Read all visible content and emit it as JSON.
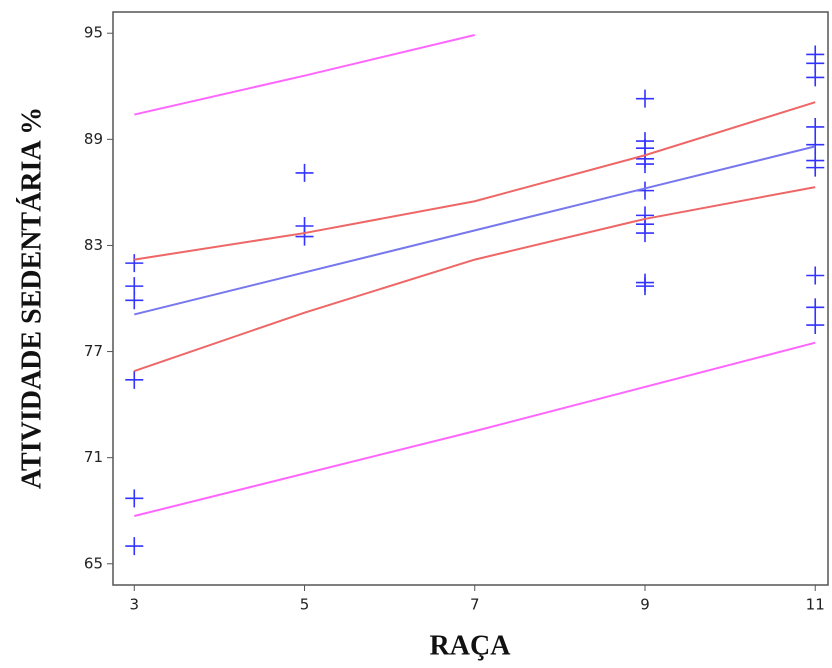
{
  "chart_data": {
    "type": "scatter",
    "xlabel": "RAÇA",
    "ylabel": "ATIVIDADE SEDENTÁRIA %",
    "xlim": [
      2.75,
      11.15
    ],
    "ylim": [
      63.8,
      96.2
    ],
    "xticks": [
      3,
      5,
      7,
      9,
      11
    ],
    "yticks": [
      65,
      71,
      77,
      83,
      89,
      95
    ],
    "series": [
      {
        "style": "markers",
        "color": "#3333ff",
        "x": [
          3,
          3,
          3,
          3,
          3,
          3,
          5,
          5,
          5,
          9,
          9,
          9,
          9,
          9,
          9,
          9,
          9,
          9,
          9,
          9,
          11,
          11,
          11,
          11,
          11,
          11,
          11,
          11,
          11,
          11
        ],
        "values": [
          82.0,
          80.7,
          79.9,
          75.4,
          68.7,
          66.0,
          87.1,
          84.1,
          83.5,
          91.3,
          88.9,
          88.5,
          87.9,
          87.6,
          86.1,
          84.7,
          84.2,
          83.7,
          80.9,
          80.7,
          93.8,
          93.3,
          92.5,
          89.7,
          88.7,
          87.8,
          87.4,
          81.3,
          79.5,
          78.5
        ]
      },
      {
        "style": "line",
        "color": "#7777ee",
        "x": [
          3,
          11
        ],
        "values": [
          79.1,
          88.6
        ]
      },
      {
        "style": "line",
        "color": "#ee6666",
        "x": [
          3,
          5,
          7,
          9,
          11
        ],
        "values": [
          82.2,
          83.7,
          85.5,
          88.1,
          91.1
        ]
      },
      {
        "style": "line",
        "color": "#ee6666",
        "x": [
          3,
          5,
          7,
          9,
          11
        ],
        "values": [
          75.9,
          79.2,
          82.2,
          84.5,
          86.3
        ]
      },
      {
        "style": "line",
        "color": "#ff66ff",
        "x": [
          3,
          5,
          7
        ],
        "values": [
          90.4,
          92.6,
          94.9
        ]
      },
      {
        "style": "line",
        "color": "#ff66ff",
        "x": [
          3,
          7,
          11
        ],
        "values": [
          67.7,
          72.5,
          77.5
        ]
      }
    ]
  }
}
